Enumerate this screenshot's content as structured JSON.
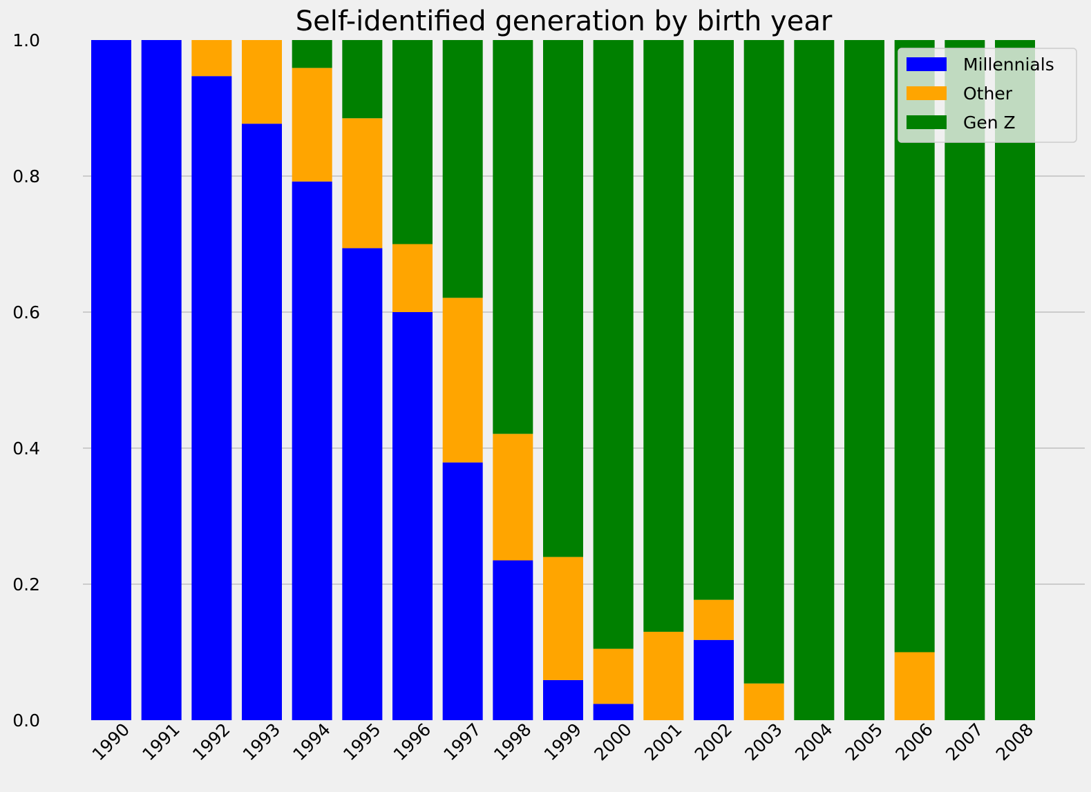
{
  "chart_data": {
    "type": "bar",
    "stacked": true,
    "normalized": true,
    "title": "Self-identified generation by birth year",
    "xlabel": "",
    "ylabel": "",
    "ylim": [
      0,
      1
    ],
    "yticks": [
      "0.0",
      "0.2",
      "0.4",
      "0.6",
      "0.8",
      "1.0"
    ],
    "grid": "horizontal",
    "legend_position": "top-right",
    "categories": [
      "1990",
      "1991",
      "1992",
      "1993",
      "1994",
      "1995",
      "1996",
      "1997",
      "1998",
      "1999",
      "2000",
      "2001",
      "2002",
      "2003",
      "2004",
      "2005",
      "2006",
      "2007",
      "2008"
    ],
    "series": [
      {
        "name": "Millennials",
        "color": "#0000ff",
        "values": [
          1.0,
          1.0,
          0.947,
          0.877,
          0.792,
          0.694,
          0.6,
          0.379,
          0.235,
          0.059,
          0.024,
          0.0,
          0.118,
          0.0,
          0.0,
          0.0,
          0.0,
          0.0,
          0.0
        ]
      },
      {
        "name": "Other",
        "color": "#ffa500",
        "values": [
          0.0,
          0.0,
          0.053,
          0.123,
          0.167,
          0.191,
          0.1,
          0.242,
          0.186,
          0.181,
          0.081,
          0.13,
          0.059,
          0.054,
          0.0,
          0.0,
          0.1,
          0.0,
          0.0
        ]
      },
      {
        "name": "Gen Z",
        "color": "#008000",
        "values": [
          0.0,
          0.0,
          0.0,
          0.0,
          0.041,
          0.115,
          0.3,
          0.379,
          0.579,
          0.76,
          0.895,
          0.87,
          0.823,
          0.946,
          1.0,
          1.0,
          0.9,
          1.0,
          1.0
        ]
      }
    ]
  }
}
